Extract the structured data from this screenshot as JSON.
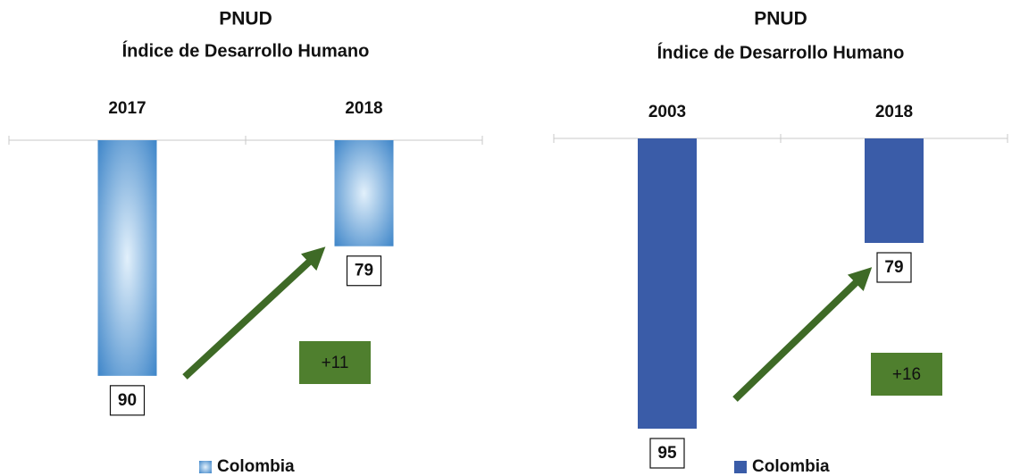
{
  "chart_data": [
    {
      "type": "bar",
      "title": "PNUD",
      "subtitle": "Índice de Desarrollo Humano",
      "categories": [
        "2017",
        "2018"
      ],
      "series": [
        {
          "name": "Colombia",
          "color": "#3f86c9",
          "fill_style": "radial-gradient",
          "values": [
            90,
            79
          ]
        }
      ],
      "ylim": [
        70,
        96
      ],
      "inverted": true,
      "annotation": "+11"
    },
    {
      "type": "bar",
      "title": "PNUD",
      "subtitle": "Índice de Desarrollo Humano",
      "categories": [
        "2003",
        "2018"
      ],
      "series": [
        {
          "name": "Colombia",
          "color": "#3a5ca8",
          "fill_style": "solid",
          "values": [
            95,
            79
          ]
        }
      ],
      "ylim": [
        70,
        96
      ],
      "inverted": true,
      "annotation": "+16"
    }
  ]
}
